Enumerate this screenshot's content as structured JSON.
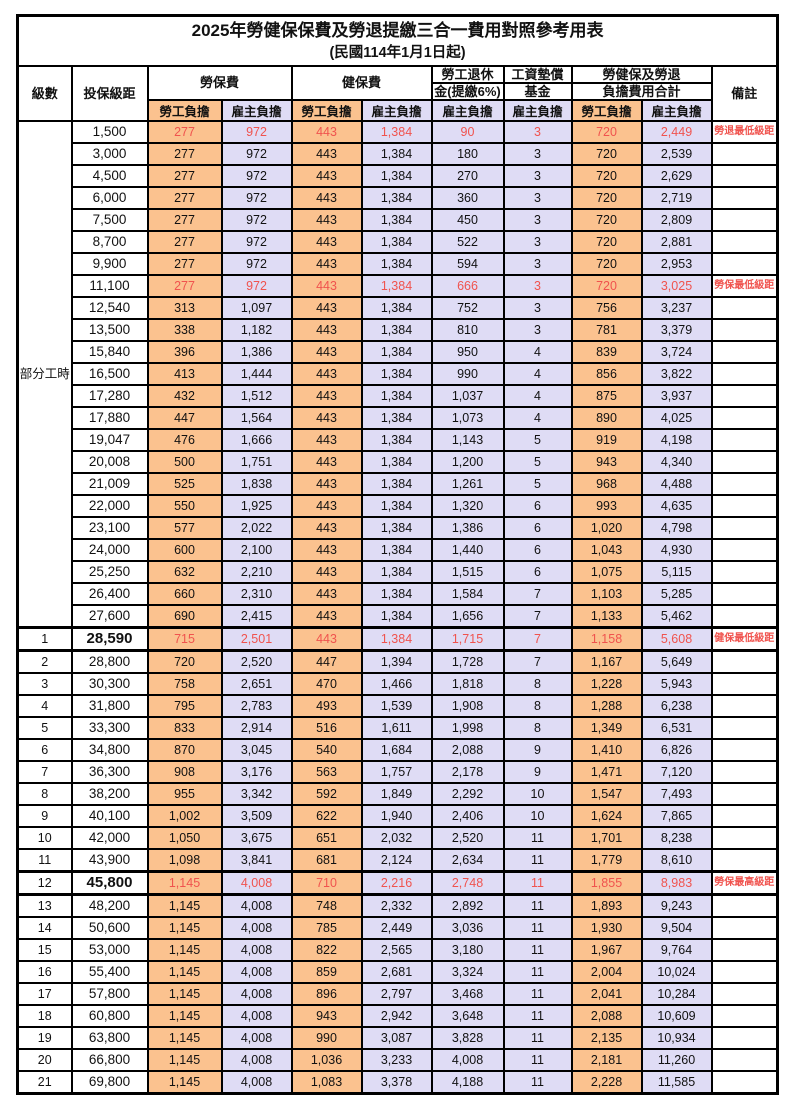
{
  "title": "2025年勞健保保費及勞退提繳三合一費用對照參考用表",
  "subtitle": "(民國114年1月1日起)",
  "header": {
    "level": "級數",
    "bracket": "投保級距",
    "labor_group": "勞保費",
    "health_group": "健保費",
    "pension_line1": "勞工退休",
    "pension_line2": "金(提繳6%)",
    "wage_line1": "工資墊償",
    "wage_line2": "基金",
    "total_line1": "勞健保及勞退",
    "total_line2": "負擔費用合計",
    "remark": "備註",
    "employee": "勞工負擔",
    "employer": "雇主負擔"
  },
  "part_time_label": "部分工時",
  "colors": {
    "employee_bg": "#FBC28F",
    "employer_bg": "#DFDCF5",
    "highlight_text": "#F0534E"
  },
  "rows": [
    {
      "level": "",
      "bracket": "1,500",
      "values": [
        "277",
        "972",
        "443",
        "1,384",
        "90",
        "3",
        "720",
        "2,449"
      ],
      "remark": "勞退最低級距",
      "red": true,
      "bold": false,
      "thick_top": false,
      "thick_bottom": false
    },
    {
      "level": "",
      "bracket": "3,000",
      "values": [
        "277",
        "972",
        "443",
        "1,384",
        "180",
        "3",
        "720",
        "2,539"
      ],
      "remark": "",
      "red": false,
      "bold": false,
      "thick_top": false,
      "thick_bottom": false
    },
    {
      "level": "",
      "bracket": "4,500",
      "values": [
        "277",
        "972",
        "443",
        "1,384",
        "270",
        "3",
        "720",
        "2,629"
      ],
      "remark": "",
      "red": false,
      "bold": false,
      "thick_top": false,
      "thick_bottom": false
    },
    {
      "level": "",
      "bracket": "6,000",
      "values": [
        "277",
        "972",
        "443",
        "1,384",
        "360",
        "3",
        "720",
        "2,719"
      ],
      "remark": "",
      "red": false,
      "bold": false,
      "thick_top": false,
      "thick_bottom": false
    },
    {
      "level": "",
      "bracket": "7,500",
      "values": [
        "277",
        "972",
        "443",
        "1,384",
        "450",
        "3",
        "720",
        "2,809"
      ],
      "remark": "",
      "red": false,
      "bold": false,
      "thick_top": false,
      "thick_bottom": false
    },
    {
      "level": "",
      "bracket": "8,700",
      "values": [
        "277",
        "972",
        "443",
        "1,384",
        "522",
        "3",
        "720",
        "2,881"
      ],
      "remark": "",
      "red": false,
      "bold": false,
      "thick_top": false,
      "thick_bottom": false
    },
    {
      "level": "",
      "bracket": "9,900",
      "values": [
        "277",
        "972",
        "443",
        "1,384",
        "594",
        "3",
        "720",
        "2,953"
      ],
      "remark": "",
      "red": false,
      "bold": false,
      "thick_top": false,
      "thick_bottom": false
    },
    {
      "level": "",
      "bracket": "11,100",
      "values": [
        "277",
        "972",
        "443",
        "1,384",
        "666",
        "3",
        "720",
        "3,025"
      ],
      "remark": "勞保最低級距",
      "red": true,
      "bold": false,
      "thick_top": false,
      "thick_bottom": false
    },
    {
      "level": "",
      "bracket": "12,540",
      "values": [
        "313",
        "1,097",
        "443",
        "1,384",
        "752",
        "3",
        "756",
        "3,237"
      ],
      "remark": "",
      "red": false,
      "bold": false,
      "thick_top": false,
      "thick_bottom": false
    },
    {
      "level": "",
      "bracket": "13,500",
      "values": [
        "338",
        "1,182",
        "443",
        "1,384",
        "810",
        "3",
        "781",
        "3,379"
      ],
      "remark": "",
      "red": false,
      "bold": false,
      "thick_top": false,
      "thick_bottom": false
    },
    {
      "level": "",
      "bracket": "15,840",
      "values": [
        "396",
        "1,386",
        "443",
        "1,384",
        "950",
        "4",
        "839",
        "3,724"
      ],
      "remark": "",
      "red": false,
      "bold": false,
      "thick_top": false,
      "thick_bottom": false
    },
    {
      "level": "",
      "bracket": "16,500",
      "values": [
        "413",
        "1,444",
        "443",
        "1,384",
        "990",
        "4",
        "856",
        "3,822"
      ],
      "remark": "",
      "red": false,
      "bold": false,
      "thick_top": false,
      "thick_bottom": false
    },
    {
      "level": "",
      "bracket": "17,280",
      "values": [
        "432",
        "1,512",
        "443",
        "1,384",
        "1,037",
        "4",
        "875",
        "3,937"
      ],
      "remark": "",
      "red": false,
      "bold": false,
      "thick_top": false,
      "thick_bottom": false
    },
    {
      "level": "",
      "bracket": "17,880",
      "values": [
        "447",
        "1,564",
        "443",
        "1,384",
        "1,073",
        "4",
        "890",
        "4,025"
      ],
      "remark": "",
      "red": false,
      "bold": false,
      "thick_top": false,
      "thick_bottom": false
    },
    {
      "level": "",
      "bracket": "19,047",
      "values": [
        "476",
        "1,666",
        "443",
        "1,384",
        "1,143",
        "5",
        "919",
        "4,198"
      ],
      "remark": "",
      "red": false,
      "bold": false,
      "thick_top": false,
      "thick_bottom": false
    },
    {
      "level": "",
      "bracket": "20,008",
      "values": [
        "500",
        "1,751",
        "443",
        "1,384",
        "1,200",
        "5",
        "943",
        "4,340"
      ],
      "remark": "",
      "red": false,
      "bold": false,
      "thick_top": false,
      "thick_bottom": false
    },
    {
      "level": "",
      "bracket": "21,009",
      "values": [
        "525",
        "1,838",
        "443",
        "1,384",
        "1,261",
        "5",
        "968",
        "4,488"
      ],
      "remark": "",
      "red": false,
      "bold": false,
      "thick_top": false,
      "thick_bottom": false
    },
    {
      "level": "",
      "bracket": "22,000",
      "values": [
        "550",
        "1,925",
        "443",
        "1,384",
        "1,320",
        "6",
        "993",
        "4,635"
      ],
      "remark": "",
      "red": false,
      "bold": false,
      "thick_top": false,
      "thick_bottom": false
    },
    {
      "level": "",
      "bracket": "23,100",
      "values": [
        "577",
        "2,022",
        "443",
        "1,384",
        "1,386",
        "6",
        "1,020",
        "4,798"
      ],
      "remark": "",
      "red": false,
      "bold": false,
      "thick_top": false,
      "thick_bottom": false
    },
    {
      "level": "",
      "bracket": "24,000",
      "values": [
        "600",
        "2,100",
        "443",
        "1,384",
        "1,440",
        "6",
        "1,043",
        "4,930"
      ],
      "remark": "",
      "red": false,
      "bold": false,
      "thick_top": false,
      "thick_bottom": false
    },
    {
      "level": "",
      "bracket": "25,250",
      "values": [
        "632",
        "2,210",
        "443",
        "1,384",
        "1,515",
        "6",
        "1,075",
        "5,115"
      ],
      "remark": "",
      "red": false,
      "bold": false,
      "thick_top": false,
      "thick_bottom": false
    },
    {
      "level": "",
      "bracket": "26,400",
      "values": [
        "660",
        "2,310",
        "443",
        "1,384",
        "1,584",
        "7",
        "1,103",
        "5,285"
      ],
      "remark": "",
      "red": false,
      "bold": false,
      "thick_top": false,
      "thick_bottom": false
    },
    {
      "level": "",
      "bracket": "27,600",
      "values": [
        "690",
        "2,415",
        "443",
        "1,384",
        "1,656",
        "7",
        "1,133",
        "5,462"
      ],
      "remark": "",
      "red": false,
      "bold": false,
      "thick_top": false,
      "thick_bottom": false
    },
    {
      "level": "1",
      "bracket": "28,590",
      "values": [
        "715",
        "2,501",
        "443",
        "1,384",
        "1,715",
        "7",
        "1,158",
        "5,608"
      ],
      "remark": "健保最低級距",
      "red": true,
      "bold": true,
      "thick_top": true,
      "thick_bottom": true
    },
    {
      "level": "2",
      "bracket": "28,800",
      "values": [
        "720",
        "2,520",
        "447",
        "1,394",
        "1,728",
        "7",
        "1,167",
        "5,649"
      ],
      "remark": "",
      "red": false,
      "bold": false,
      "thick_top": false,
      "thick_bottom": false
    },
    {
      "level": "3",
      "bracket": "30,300",
      "values": [
        "758",
        "2,651",
        "470",
        "1,466",
        "1,818",
        "8",
        "1,228",
        "5,943"
      ],
      "remark": "",
      "red": false,
      "bold": false,
      "thick_top": false,
      "thick_bottom": false
    },
    {
      "level": "4",
      "bracket": "31,800",
      "values": [
        "795",
        "2,783",
        "493",
        "1,539",
        "1,908",
        "8",
        "1,288",
        "6,238"
      ],
      "remark": "",
      "red": false,
      "bold": false,
      "thick_top": false,
      "thick_bottom": false
    },
    {
      "level": "5",
      "bracket": "33,300",
      "values": [
        "833",
        "2,914",
        "516",
        "1,611",
        "1,998",
        "8",
        "1,349",
        "6,531"
      ],
      "remark": "",
      "red": false,
      "bold": false,
      "thick_top": false,
      "thick_bottom": false
    },
    {
      "level": "6",
      "bracket": "34,800",
      "values": [
        "870",
        "3,045",
        "540",
        "1,684",
        "2,088",
        "9",
        "1,410",
        "6,826"
      ],
      "remark": "",
      "red": false,
      "bold": false,
      "thick_top": false,
      "thick_bottom": false
    },
    {
      "level": "7",
      "bracket": "36,300",
      "values": [
        "908",
        "3,176",
        "563",
        "1,757",
        "2,178",
        "9",
        "1,471",
        "7,120"
      ],
      "remark": "",
      "red": false,
      "bold": false,
      "thick_top": false,
      "thick_bottom": false
    },
    {
      "level": "8",
      "bracket": "38,200",
      "values": [
        "955",
        "3,342",
        "592",
        "1,849",
        "2,292",
        "10",
        "1,547",
        "7,493"
      ],
      "remark": "",
      "red": false,
      "bold": false,
      "thick_top": false,
      "thick_bottom": false
    },
    {
      "level": "9",
      "bracket": "40,100",
      "values": [
        "1,002",
        "3,509",
        "622",
        "1,940",
        "2,406",
        "10",
        "1,624",
        "7,865"
      ],
      "remark": "",
      "red": false,
      "bold": false,
      "thick_top": false,
      "thick_bottom": false
    },
    {
      "level": "10",
      "bracket": "42,000",
      "values": [
        "1,050",
        "3,675",
        "651",
        "2,032",
        "2,520",
        "11",
        "1,701",
        "8,238"
      ],
      "remark": "",
      "red": false,
      "bold": false,
      "thick_top": false,
      "thick_bottom": false
    },
    {
      "level": "11",
      "bracket": "43,900",
      "values": [
        "1,098",
        "3,841",
        "681",
        "2,124",
        "2,634",
        "11",
        "1,779",
        "8,610"
      ],
      "remark": "",
      "red": false,
      "bold": false,
      "thick_top": false,
      "thick_bottom": false
    },
    {
      "level": "12",
      "bracket": "45,800",
      "values": [
        "1,145",
        "4,008",
        "710",
        "2,216",
        "2,748",
        "11",
        "1,855",
        "8,983"
      ],
      "remark": "勞保最高級距",
      "red": true,
      "bold": true,
      "thick_top": true,
      "thick_bottom": true
    },
    {
      "level": "13",
      "bracket": "48,200",
      "values": [
        "1,145",
        "4,008",
        "748",
        "2,332",
        "2,892",
        "11",
        "1,893",
        "9,243"
      ],
      "remark": "",
      "red": false,
      "bold": false,
      "thick_top": false,
      "thick_bottom": false
    },
    {
      "level": "14",
      "bracket": "50,600",
      "values": [
        "1,145",
        "4,008",
        "785",
        "2,449",
        "3,036",
        "11",
        "1,930",
        "9,504"
      ],
      "remark": "",
      "red": false,
      "bold": false,
      "thick_top": false,
      "thick_bottom": false
    },
    {
      "level": "15",
      "bracket": "53,000",
      "values": [
        "1,145",
        "4,008",
        "822",
        "2,565",
        "3,180",
        "11",
        "1,967",
        "9,764"
      ],
      "remark": "",
      "red": false,
      "bold": false,
      "thick_top": false,
      "thick_bottom": false
    },
    {
      "level": "16",
      "bracket": "55,400",
      "values": [
        "1,145",
        "4,008",
        "859",
        "2,681",
        "3,324",
        "11",
        "2,004",
        "10,024"
      ],
      "remark": "",
      "red": false,
      "bold": false,
      "thick_top": false,
      "thick_bottom": false
    },
    {
      "level": "17",
      "bracket": "57,800",
      "values": [
        "1,145",
        "4,008",
        "896",
        "2,797",
        "3,468",
        "11",
        "2,041",
        "10,284"
      ],
      "remark": "",
      "red": false,
      "bold": false,
      "thick_top": false,
      "thick_bottom": false
    },
    {
      "level": "18",
      "bracket": "60,800",
      "values": [
        "1,145",
        "4,008",
        "943",
        "2,942",
        "3,648",
        "11",
        "2,088",
        "10,609"
      ],
      "remark": "",
      "red": false,
      "bold": false,
      "thick_top": false,
      "thick_bottom": false
    },
    {
      "level": "19",
      "bracket": "63,800",
      "values": [
        "1,145",
        "4,008",
        "990",
        "3,087",
        "3,828",
        "11",
        "2,135",
        "10,934"
      ],
      "remark": "",
      "red": false,
      "bold": false,
      "thick_top": false,
      "thick_bottom": false
    },
    {
      "level": "20",
      "bracket": "66,800",
      "values": [
        "1,145",
        "4,008",
        "1,036",
        "3,233",
        "4,008",
        "11",
        "2,181",
        "11,260"
      ],
      "remark": "",
      "red": false,
      "bold": false,
      "thick_top": false,
      "thick_bottom": false
    },
    {
      "level": "21",
      "bracket": "69,800",
      "values": [
        "1,145",
        "4,008",
        "1,083",
        "3,378",
        "4,188",
        "11",
        "2,228",
        "11,585"
      ],
      "remark": "",
      "red": false,
      "bold": false,
      "thick_top": false,
      "thick_bottom": false
    }
  ]
}
